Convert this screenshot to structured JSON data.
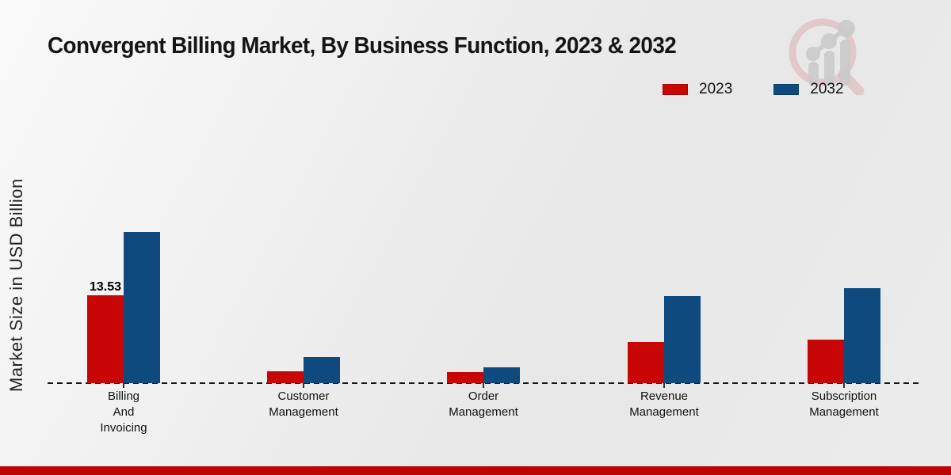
{
  "title": "Convergent Billing Market, By Business Function, 2023 & 2032",
  "ylabel": "Market Size in USD Billion",
  "legend": [
    {
      "label": "2023",
      "color": "#c90606"
    },
    {
      "label": "2032",
      "color": "#0e4a7e"
    }
  ],
  "colors": {
    "bar_2023": "#c90606",
    "bar_2032": "#0e4a7e",
    "footer_bar": "#bb0404",
    "baseline": "#141414",
    "logo_ring": "#d9a9ad",
    "logo_bars": "#c7c7c7"
  },
  "chart_data": {
    "type": "bar",
    "categories": [
      "Billing\nAnd\nInvoicing",
      "Customer\nManagement",
      "Order\nManagement",
      "Revenue\nManagement",
      "Subscription\nManagement"
    ],
    "series": [
      {
        "name": "2023",
        "color": "#c90606",
        "values": [
          13.53,
          1.8,
          1.7,
          6.3,
          6.7
        ]
      },
      {
        "name": "2032",
        "color": "#0e4a7e",
        "values": [
          23.3,
          4.0,
          2.4,
          13.4,
          14.6
        ]
      }
    ],
    "value_labels": [
      {
        "category_index": 0,
        "series_index": 0,
        "text": "13.53"
      }
    ],
    "title": "Convergent Billing Market, By Business Function, 2023 & 2032",
    "xlabel": "",
    "ylabel": "Market Size in USD Billion",
    "ylim": [
      0,
      25
    ],
    "grid": false,
    "legend_position": "top-right",
    "baseline_style": "dashed"
  }
}
